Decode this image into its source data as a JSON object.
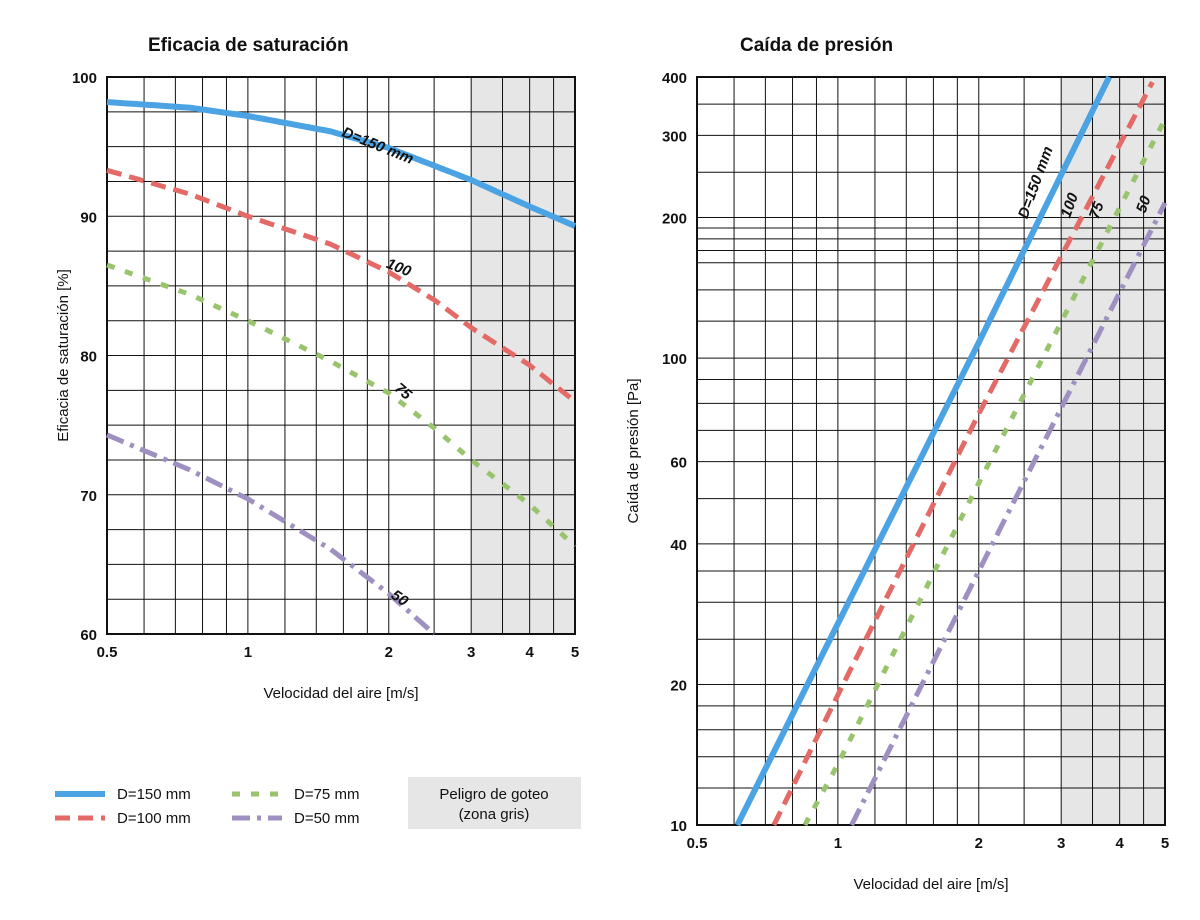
{
  "colors": {
    "blue": "#4ba3e3",
    "red": "#e36a66",
    "green": "#98c46e",
    "purple": "#9f90c2",
    "grid": "#111111",
    "shade": "#e6e6e6"
  },
  "chart_data": [
    {
      "type": "line",
      "title": "Eficacia de saturación",
      "xlabel": "Velocidad del aire [m/s]",
      "ylabel": "Eficacia de saturación  [%]",
      "x_scale": "log",
      "xlim": [
        0.5,
        5
      ],
      "ylim": [
        60,
        100
      ],
      "x_ticks": [
        0.5,
        1,
        2,
        3,
        4,
        5
      ],
      "x_tick_labels": [
        "0.5",
        "1",
        "2",
        "3",
        "4",
        "5"
      ],
      "y_ticks": [
        60,
        70,
        80,
        90,
        100
      ],
      "y_tick_labels": [
        "60",
        "70",
        "80",
        "90",
        "100"
      ],
      "shaded_x_range": [
        3,
        5
      ],
      "series": [
        {
          "name": "D=150 mm",
          "color_key": "blue",
          "style": "solid",
          "curve_label": "D=150 mm",
          "x": [
            0.5,
            0.75,
            1,
            1.5,
            2,
            3,
            4,
            5
          ],
          "y": [
            98.2,
            97.8,
            97.2,
            96.1,
            94.9,
            92.6,
            90.7,
            89.3
          ]
        },
        {
          "name": "D=100 mm",
          "color_key": "red",
          "style": "dashed",
          "curve_label": "100",
          "x": [
            0.5,
            0.75,
            1,
            1.5,
            2,
            2.5,
            3,
            4,
            5
          ],
          "y": [
            93.3,
            91.6,
            90.0,
            88.0,
            86.0,
            84.0,
            82.0,
            79.3,
            76.7
          ]
        },
        {
          "name": "D=75 mm",
          "color_key": "green",
          "style": "dotted",
          "curve_label": "75",
          "x": [
            0.5,
            0.75,
            1,
            1.5,
            2,
            2.5,
            3,
            4,
            5
          ],
          "y": [
            86.5,
            84.4,
            82.5,
            79.6,
            77.3,
            74.8,
            72.5,
            69.3,
            66.3
          ]
        },
        {
          "name": "D=50 mm",
          "color_key": "purple",
          "style": "dashdot",
          "curve_label": "50",
          "x": [
            0.5,
            0.75,
            1,
            1.5,
            2,
            2.5
          ],
          "y": [
            74.3,
            71.8,
            69.7,
            66.1,
            62.9,
            60.0
          ]
        }
      ]
    },
    {
      "type": "line",
      "title": "Caída de presión",
      "xlabel": "Velocidad del aire [m/s]",
      "ylabel": "Caída de presión [Pa]",
      "x_scale": "log",
      "y_scale": "log",
      "xlim": [
        0.5,
        5
      ],
      "ylim": [
        10,
        400
      ],
      "x_ticks": [
        0.5,
        1,
        2,
        3,
        4,
        5
      ],
      "x_tick_labels": [
        "0.5",
        "1",
        "2",
        "3",
        "4",
        "5"
      ],
      "y_ticks": [
        10,
        20,
        40,
        60,
        100,
        200,
        300,
        400
      ],
      "y_tick_labels": [
        "10",
        "20",
        "40",
        "60",
        "100",
        "200",
        "300",
        "400"
      ],
      "shaded_x_range": [
        3,
        5
      ],
      "series": [
        {
          "name": "D=150 mm",
          "color_key": "blue",
          "style": "solid",
          "curve_label": "D=150 mm",
          "x": [
            0.61,
            1,
            2,
            3.8
          ],
          "y": [
            10,
            27,
            108,
            400
          ]
        },
        {
          "name": "D=100 mm",
          "color_key": "red",
          "style": "dashed",
          "curve_label": "100",
          "x": [
            0.73,
            1,
            2,
            4.7
          ],
          "y": [
            10,
            19,
            76,
            390
          ]
        },
        {
          "name": "D=75 mm",
          "color_key": "green",
          "style": "dotted",
          "curve_label": "75",
          "x": [
            0.85,
            1,
            2,
            5.0
          ],
          "y": [
            10,
            13.5,
            54,
            325
          ]
        },
        {
          "name": "D=50 mm",
          "color_key": "purple",
          "style": "dashdot",
          "curve_label": "50",
          "x": [
            1.07,
            2,
            5.0
          ],
          "y": [
            10,
            35,
            215
          ]
        }
      ]
    }
  ],
  "legend": {
    "items": [
      {
        "label": "D=150 mm",
        "color_key": "blue",
        "style": "solid"
      },
      {
        "label": "D=100 mm",
        "color_key": "red",
        "style": "dashed"
      },
      {
        "label": "D=75 mm",
        "color_key": "green",
        "style": "dotted"
      },
      {
        "label": "D=50 mm",
        "color_key": "purple",
        "style": "dashdot"
      }
    ],
    "zone_line1": "Peligro de goteo",
    "zone_line2": "(zona gris)"
  }
}
